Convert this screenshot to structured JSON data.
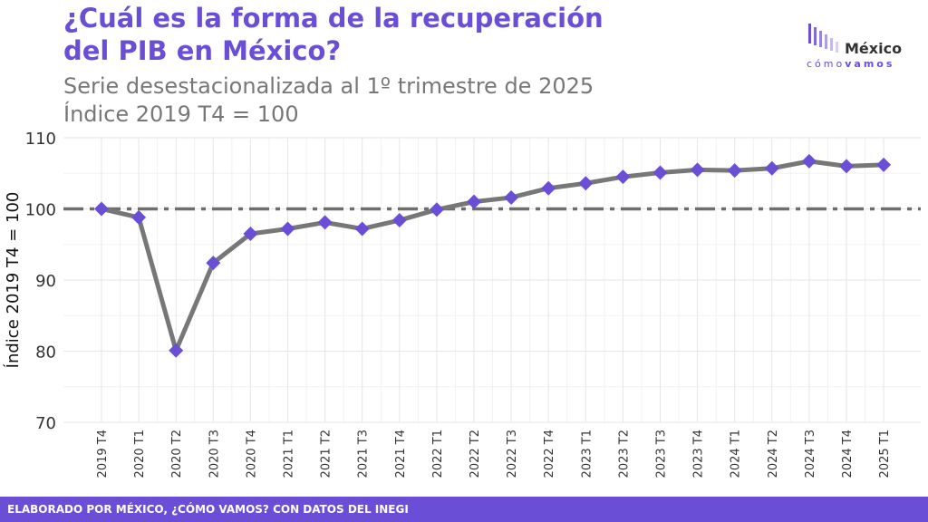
{
  "header": {
    "title_line1": "¿Cuál es la forma de la recuperación",
    "title_line2": "del PIB en México?",
    "subtitle_line1": "Serie desestacionalizada al 1º trimestre de 2025",
    "subtitle_line2": "Índice 2019 T4 = 100"
  },
  "logo": {
    "name": "México",
    "tag_light": "cómo",
    "tag_bold": "vamos"
  },
  "footer": {
    "text": "ELABORADO POR MÉXICO, ¿CÓMO VAMOS? CON DATOS DEL INEGI"
  },
  "colors": {
    "accent": "#6a4fd6",
    "line": "#777777",
    "marker": "#6a4fd6",
    "reference": "#6e6e6e"
  },
  "chart_data": {
    "type": "line",
    "title": "",
    "xlabel": "",
    "ylabel": "Índice 2019 T4 = 100",
    "categories": [
      "2019 T4",
      "2020 T1",
      "2020 T2",
      "2020 T3",
      "2020 T4",
      "2021 T1",
      "2021 T2",
      "2021 T3",
      "2021 T4",
      "2022 T1",
      "2022 T2",
      "2022 T3",
      "2022 T4",
      "2023 T1",
      "2023 T2",
      "2023 T3",
      "2023 T4",
      "2024 T1",
      "2024 T2",
      "2024 T3",
      "2024 T4",
      "2025 T1"
    ],
    "series": [
      {
        "values": [
          100.0,
          98.8,
          80.1,
          92.4,
          96.5,
          97.2,
          98.1,
          97.2,
          98.4,
          99.9,
          101.0,
          101.6,
          102.9,
          103.6,
          104.5,
          105.1,
          105.5,
          105.4,
          105.7,
          106.7,
          106.0,
          106.2
        ]
      }
    ],
    "reference_line": 100,
    "ylim": [
      70,
      110
    ],
    "yticks": [
      70,
      80,
      90,
      100,
      110
    ],
    "grid": true,
    "legend": "none"
  }
}
